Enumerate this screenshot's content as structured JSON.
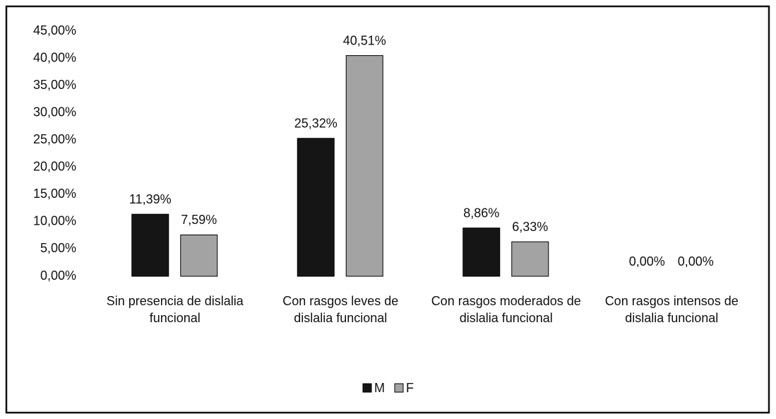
{
  "chart_data": {
    "type": "bar",
    "categories": [
      "Sin presencia de dislalia funcional",
      "Con rasgos leves de dislalia funcional",
      "Con rasgos moderados de dislalia funcional",
      "Con rasgos intensos de dislalia funcional"
    ],
    "series": [
      {
        "name": "M",
        "color": "#151515",
        "values": [
          11.39,
          25.32,
          8.86,
          0
        ],
        "value_labels": [
          "11,39%",
          "25,32%",
          "8,86%",
          "0,00%"
        ]
      },
      {
        "name": "F",
        "color": "#a3a3a3",
        "values": [
          7.59,
          40.51,
          6.33,
          0
        ],
        "value_labels": [
          "7,59%",
          "40,51%",
          "6,33%",
          "0,00%"
        ]
      }
    ],
    "ylim": [
      0,
      45
    ],
    "yticks": [
      {
        "value": 0,
        "label": "0,00%"
      },
      {
        "value": 5,
        "label": "5,00%"
      },
      {
        "value": 10,
        "label": "10,00%"
      },
      {
        "value": 15,
        "label": "15,00%"
      },
      {
        "value": 20,
        "label": "20,00%"
      },
      {
        "value": 25,
        "label": "25,00%"
      },
      {
        "value": 30,
        "label": "30,00%"
      },
      {
        "value": 35,
        "label": "35,00%"
      },
      {
        "value": 40,
        "label": "40,00%"
      },
      {
        "value": 45,
        "label": "45,00%"
      }
    ],
    "grid": false,
    "legend": "bottom"
  }
}
